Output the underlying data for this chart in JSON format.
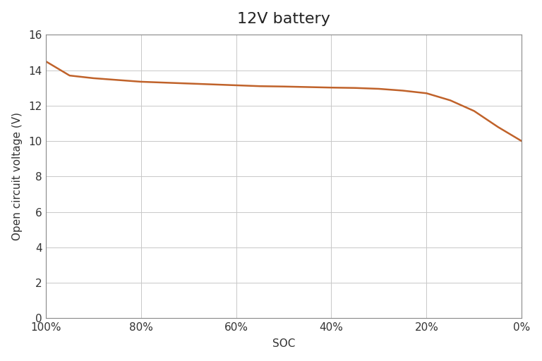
{
  "title": "12V battery",
  "xlabel": "SOC",
  "ylabel": "Open circuit voltage (V)",
  "line_color": "#C0622A",
  "line_width": 1.8,
  "background_color": "#ffffff",
  "plot_bg_color": "#ffffff",
  "ylim": [
    0,
    16
  ],
  "ytick_step": 2,
  "x_soc": [
    100,
    95,
    90,
    85,
    80,
    75,
    70,
    65,
    60,
    55,
    50,
    45,
    40,
    35,
    30,
    25,
    20,
    15,
    10,
    5,
    0
  ],
  "y_voltage": [
    14.5,
    13.7,
    13.55,
    13.45,
    13.35,
    13.3,
    13.25,
    13.2,
    13.15,
    13.1,
    13.08,
    13.05,
    13.02,
    13.0,
    12.95,
    12.85,
    12.7,
    12.3,
    11.7,
    10.8,
    10.0
  ],
  "xtick_labels": [
    "100%",
    "80%",
    "60%",
    "40%",
    "20%",
    "0%"
  ],
  "xtick_positions": [
    100,
    80,
    60,
    40,
    20,
    0
  ],
  "title_fontsize": 16,
  "label_fontsize": 11,
  "tick_fontsize": 11,
  "grid_color": "#c8c8c8",
  "grid_linewidth": 0.7,
  "spine_color": "#888888",
  "spine_linewidth": 0.8
}
